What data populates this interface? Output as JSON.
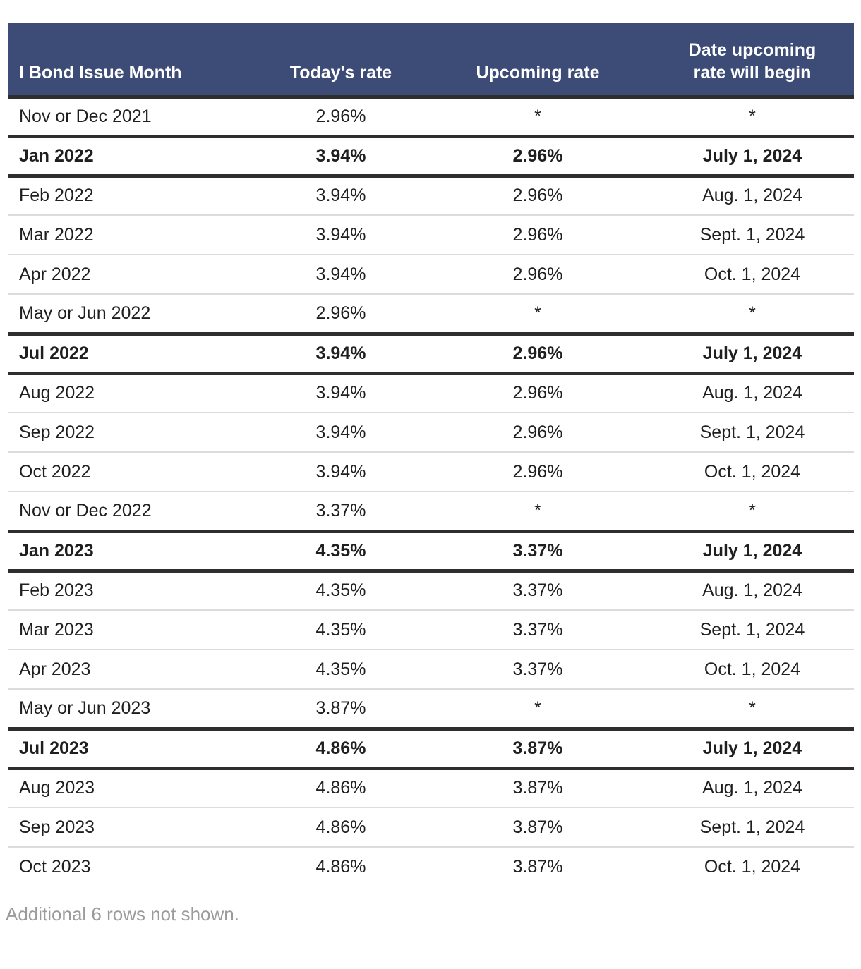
{
  "chart_data": {
    "type": "table",
    "columns": [
      "I Bond Issue Month",
      "Today's rate",
      "Upcoming rate",
      "Date upcoming rate will begin"
    ],
    "rows": [
      {
        "cells": [
          "Nov or Dec 2021",
          "2.96%",
          "*",
          "*"
        ],
        "emphasis": false
      },
      {
        "cells": [
          "Jan 2022",
          "3.94%",
          "2.96%",
          "July 1, 2024"
        ],
        "emphasis": true
      },
      {
        "cells": [
          "Feb 2022",
          "3.94%",
          "2.96%",
          "Aug. 1, 2024"
        ],
        "emphasis": false
      },
      {
        "cells": [
          "Mar 2022",
          "3.94%",
          "2.96%",
          "Sept. 1, 2024"
        ],
        "emphasis": false
      },
      {
        "cells": [
          "Apr 2022",
          "3.94%",
          "2.96%",
          "Oct. 1, 2024"
        ],
        "emphasis": false
      },
      {
        "cells": [
          "May or Jun 2022",
          "2.96%",
          "*",
          "*"
        ],
        "emphasis": false
      },
      {
        "cells": [
          "Jul 2022",
          "3.94%",
          "2.96%",
          "July 1, 2024"
        ],
        "emphasis": true
      },
      {
        "cells": [
          "Aug 2022",
          "3.94%",
          "2.96%",
          "Aug. 1, 2024"
        ],
        "emphasis": false
      },
      {
        "cells": [
          "Sep 2022",
          "3.94%",
          "2.96%",
          "Sept. 1, 2024"
        ],
        "emphasis": false
      },
      {
        "cells": [
          "Oct 2022",
          "3.94%",
          "2.96%",
          "Oct. 1, 2024"
        ],
        "emphasis": false
      },
      {
        "cells": [
          "Nov or Dec 2022",
          "3.37%",
          "*",
          "*"
        ],
        "emphasis": false
      },
      {
        "cells": [
          "Jan 2023",
          "4.35%",
          "3.37%",
          "July 1, 2024"
        ],
        "emphasis": true
      },
      {
        "cells": [
          "Feb 2023",
          "4.35%",
          "3.37%",
          "Aug. 1, 2024"
        ],
        "emphasis": false
      },
      {
        "cells": [
          "Mar 2023",
          "4.35%",
          "3.37%",
          "Sept. 1, 2024"
        ],
        "emphasis": false
      },
      {
        "cells": [
          "Apr 2023",
          "4.35%",
          "3.37%",
          "Oct. 1, 2024"
        ],
        "emphasis": false
      },
      {
        "cells": [
          "May or Jun 2023",
          "3.87%",
          "*",
          "*"
        ],
        "emphasis": false
      },
      {
        "cells": [
          "Jul 2023",
          "4.86%",
          "3.87%",
          "July 1, 2024"
        ],
        "emphasis": true
      },
      {
        "cells": [
          "Aug 2023",
          "4.86%",
          "3.87%",
          "Aug. 1, 2024"
        ],
        "emphasis": false
      },
      {
        "cells": [
          "Sep 2023",
          "4.86%",
          "3.87%",
          "Sept. 1, 2024"
        ],
        "emphasis": false
      },
      {
        "cells": [
          "Oct 2023",
          "4.86%",
          "3.87%",
          "Oct. 1, 2024"
        ],
        "emphasis": false
      }
    ],
    "title": "",
    "layout": {
      "column_align": [
        "left",
        "center",
        "center",
        "center"
      ],
      "emphasized_row_borders": true
    }
  },
  "footnote": "Additional 6 rows not shown.",
  "colors": {
    "header_bg": "#3d4c77",
    "header_text": "#ffffff",
    "thick_border": "#2e2e2e",
    "thin_border": "#dcdcdc",
    "body_text": "#1f1f1f",
    "note_text": "#9b9b9b",
    "page_bg": "#ffffff"
  }
}
